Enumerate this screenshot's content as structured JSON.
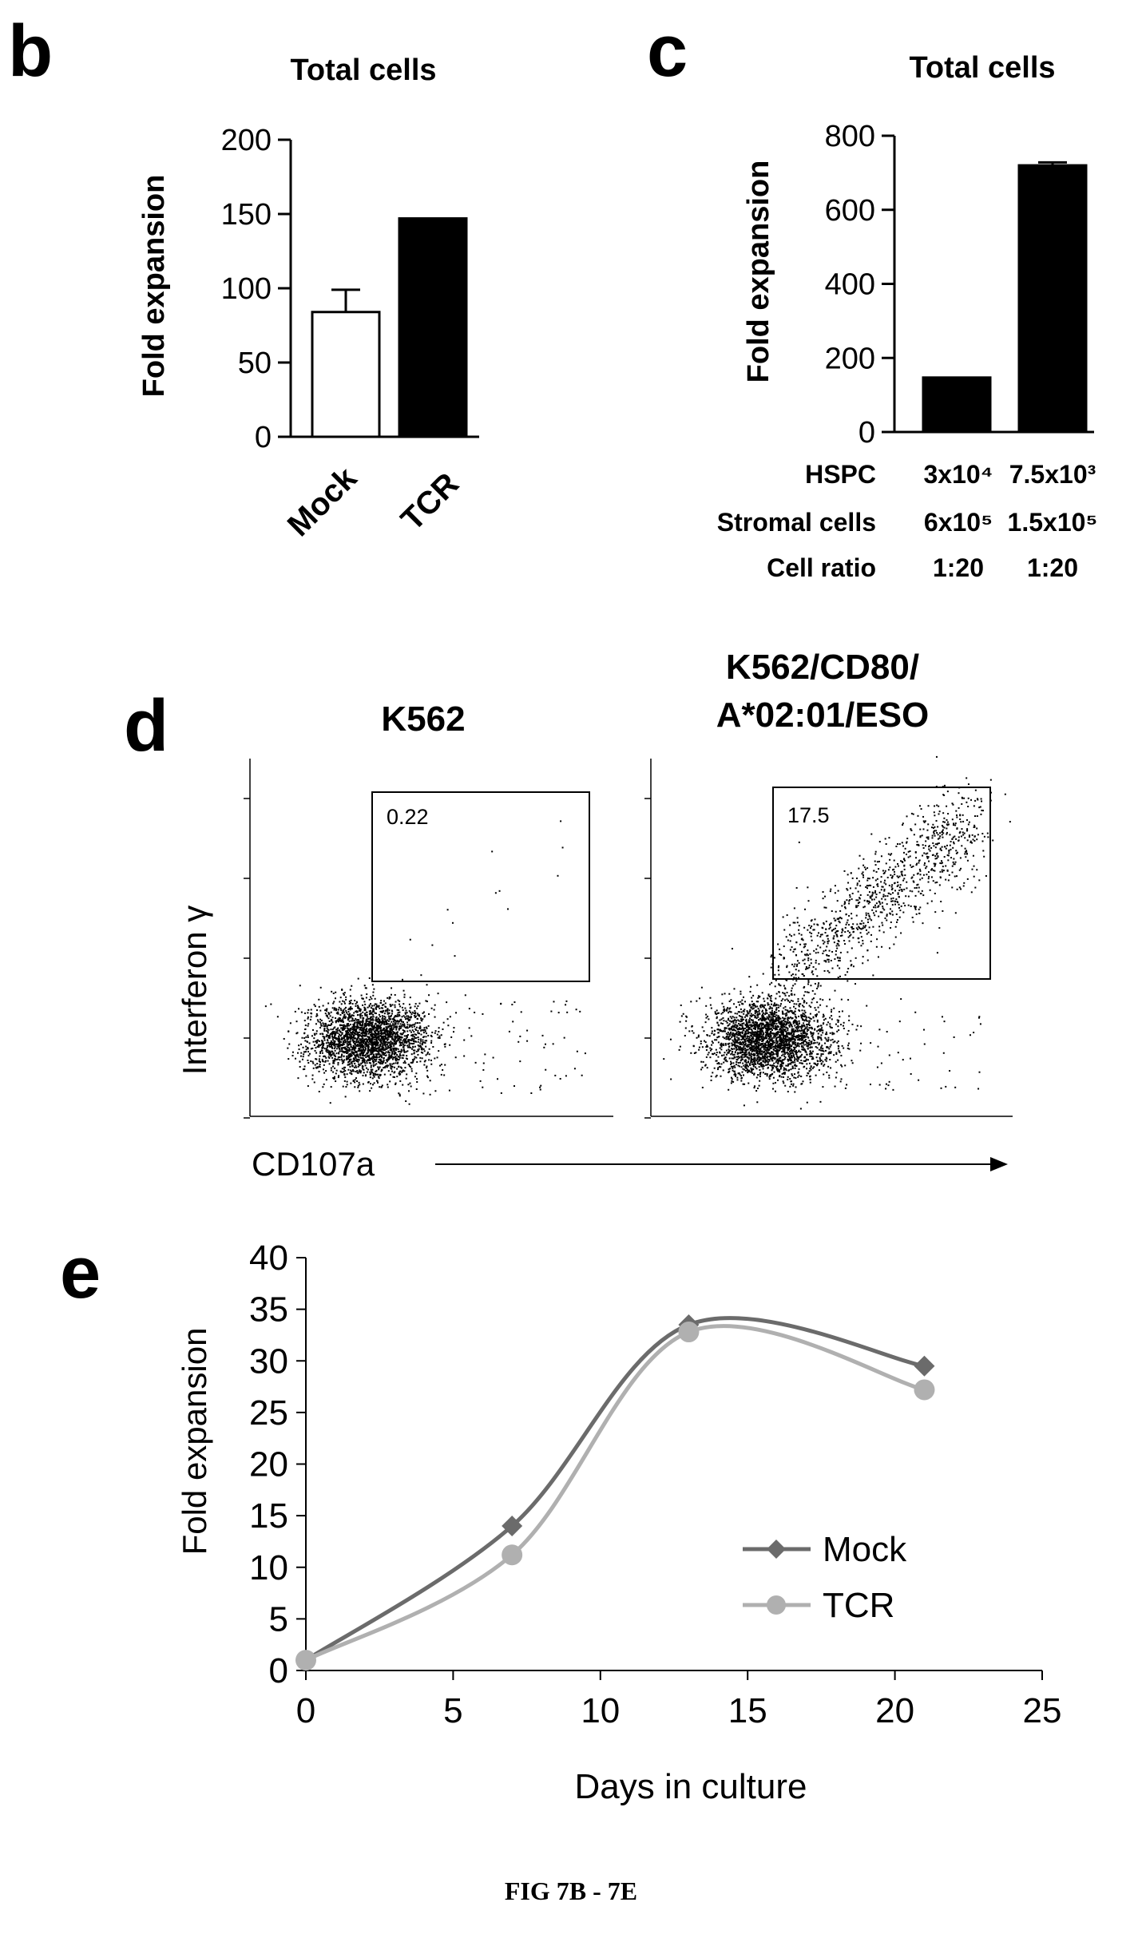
{
  "figure_caption": "FIG 7B - 7E",
  "panels": {
    "b": {
      "letter": "b",
      "title": "Total cells",
      "ylabel": "Fold expansion",
      "yticks": [
        "0",
        "50",
        "100",
        "150",
        "200"
      ],
      "categories": [
        "Mock",
        "TCR"
      ]
    },
    "c": {
      "letter": "c",
      "title": "Total cells",
      "ylabel": "Fold expansion",
      "yticks": [
        "0",
        "200",
        "400",
        "600",
        "800"
      ],
      "table": [
        {
          "label": "HSPC",
          "col1": "3x10⁴",
          "col2": "7.5x10³"
        },
        {
          "label": "Stromal cells",
          "col1": "6x10⁵",
          "col2": "1.5x10⁵"
        },
        {
          "label": "Cell ratio",
          "col1": "1:20",
          "col2": "1:20"
        }
      ]
    },
    "d": {
      "letter": "d",
      "plot1_title": "K562",
      "plot2_title_line1": "K562/CD80/",
      "plot2_title_line2": "A*02:01/ESO",
      "gate1_value": "0.22",
      "gate2_value": "17.5",
      "ylabel": "Interferon γ",
      "xlabel": "CD107a"
    },
    "e": {
      "letter": "e",
      "ylabel": "Fold expansion",
      "xlabel": "Days in culture",
      "xticks": [
        "0",
        "5",
        "10",
        "15",
        "20",
        "25"
      ],
      "yticks": [
        "0",
        "5",
        "10",
        "15",
        "20",
        "25",
        "30",
        "35",
        "40"
      ]
    }
  },
  "chart_data": [
    {
      "type": "bar",
      "panel": "b",
      "title": "Total cells",
      "categories": [
        "Mock",
        "TCR"
      ],
      "values": [
        84,
        147
      ],
      "errors": [
        15,
        0
      ],
      "ylabel": "Fold expansion",
      "ylim": [
        0,
        200
      ],
      "colors": [
        "#ffffff",
        "#000000"
      ]
    },
    {
      "type": "bar",
      "panel": "c",
      "title": "Total cells",
      "categories": [
        "3x10⁴ HSPC / 6x10⁵ stromal",
        "7.5x10³ HSPC / 1.5x10⁵ stromal"
      ],
      "values": [
        147,
        720
      ],
      "errors": [
        0,
        8
      ],
      "ylabel": "Fold expansion",
      "ylim": [
        0,
        800
      ],
      "colors": [
        "#000000",
        "#000000"
      ]
    },
    {
      "type": "scatter",
      "panel": "d",
      "plots": [
        {
          "title": "K562",
          "gate_percent": 0.22
        },
        {
          "title": "K562/CD80/A*02:01/ESO",
          "gate_percent": 17.5
        }
      ],
      "xlabel": "CD107a",
      "ylabel": "Interferon γ"
    },
    {
      "type": "line",
      "panel": "e",
      "x": [
        0,
        7,
        13,
        21
      ],
      "series": [
        {
          "name": "Mock",
          "values": [
            1,
            14,
            33.5,
            29.5
          ],
          "color": "#6b6b6b",
          "marker": "diamond"
        },
        {
          "name": "TCR",
          "values": [
            1,
            11.2,
            32.8,
            27.2
          ],
          "color": "#b0b0b0",
          "marker": "circle"
        }
      ],
      "xlabel": "Days in culture",
      "ylabel": "Fold expansion",
      "xlim": [
        0,
        25
      ],
      "ylim": [
        0,
        40
      ],
      "legend": "center-right"
    }
  ]
}
